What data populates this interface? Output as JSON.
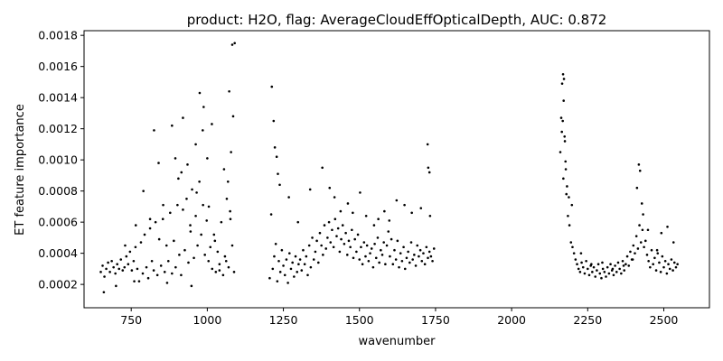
{
  "chart_data": {
    "type": "scatter",
    "title": "product: H2O, flag: AverageCloudEffOpticalDepth, AUC: 0.872",
    "xlabel": "wavenumber",
    "ylabel": "ET feature importance",
    "xlim": [
      595,
      2650
    ],
    "ylim": [
      5e-05,
      0.00183
    ],
    "xticks": [
      750,
      1000,
      1250,
      1500,
      1750,
      2000,
      2250,
      2500
    ],
    "yticks": [
      0.0002,
      0.0004,
      0.0006,
      0.0008,
      0.001,
      0.0012,
      0.0014,
      0.0016,
      0.0018
    ],
    "ytick_labels": [
      "0.0002",
      "0.0004",
      "0.0006",
      "0.0008",
      "0.0010",
      "0.0012",
      "0.0014",
      "0.0016",
      "0.0018"
    ],
    "grid": false,
    "marker_color": "#000000",
    "series": [
      {
        "x": [
          650,
          656,
          662,
          668,
          674,
          680,
          686,
          692,
          698,
          704,
          710,
          716,
          722,
          728,
          734,
          740,
          746,
          752,
          758,
          764,
          770,
          776,
          782,
          788,
          794,
          800,
          806,
          812,
          818,
          824,
          830,
          836,
          842,
          848,
          854,
          860,
          866,
          872,
          878,
          884,
          890,
          896,
          902,
          908,
          914,
          920,
          926,
          932,
          938,
          944,
          950,
          956,
          962,
          968,
          974,
          980,
          986,
          992,
          998,
          1004,
          1010,
          1016,
          1022,
          1028,
          1034,
          1040,
          1046,
          1052,
          1058,
          1064,
          1070,
          1076,
          1082,
          1088,
          660,
          700,
          760,
          790,
          812,
          840,
          868,
          884,
          905,
          920,
          935,
          948,
          962,
          975,
          988,
          1000,
          1015,
          1040,
          1062,
          1072,
          1078,
          1082,
          1085,
          1090,
          730,
          765,
          825,
          855,
          895,
          915,
          945,
          965,
          985,
          1005,
          1025,
          1055,
          1068,
          1075,
          1205,
          1210,
          1215,
          1220,
          1225,
          1230,
          1235,
          1240,
          1245,
          1250,
          1255,
          1260,
          1265,
          1270,
          1275,
          1280,
          1285,
          1290,
          1295,
          1300,
          1305,
          1310,
          1315,
          1320,
          1325,
          1330,
          1335,
          1340,
          1345,
          1350,
          1355,
          1360,
          1365,
          1370,
          1375,
          1380,
          1385,
          1390,
          1395,
          1400,
          1405,
          1410,
          1415,
          1420,
          1425,
          1430,
          1435,
          1440,
          1445,
          1450,
          1455,
          1460,
          1465,
          1470,
          1475,
          1480,
          1485,
          1490,
          1495,
          1500,
          1505,
          1510,
          1515,
          1520,
          1525,
          1530,
          1535,
          1540,
          1545,
          1550,
          1555,
          1560,
          1565,
          1570,
          1575,
          1580,
          1585,
          1590,
          1595,
          1600,
          1605,
          1610,
          1615,
          1620,
          1625,
          1630,
          1635,
          1640,
          1645,
          1650,
          1655,
          1660,
          1665,
          1670,
          1675,
          1680,
          1685,
          1690,
          1695,
          1700,
          1705,
          1710,
          1715,
          1720,
          1725,
          1730,
          1735,
          1740,
          1745,
          1212,
          1218,
          1222,
          1228,
          1232,
          1238,
          1268,
          1298,
          1338,
          1378,
          1402,
          1418,
          1438,
          1462,
          1478,
          1502,
          1522,
          1548,
          1562,
          1582,
          1598,
          1622,
          1648,
          1672,
          1702,
          1724,
          1726,
          1730,
          1732,
          2160,
          2165,
          2168,
          2170,
          2172,
          2175,
          2178,
          2180,
          2185,
          2190,
          2195,
          2200,
          2205,
          2210,
          2215,
          2220,
          2225,
          2230,
          2235,
          2240,
          2245,
          2250,
          2255,
          2260,
          2265,
          2270,
          2275,
          2280,
          2285,
          2290,
          2295,
          2300,
          2305,
          2310,
          2315,
          2320,
          2325,
          2330,
          2335,
          2340,
          2345,
          2350,
          2355,
          2360,
          2365,
          2370,
          2375,
          2380,
          2385,
          2390,
          2395,
          2400,
          2405,
          2410,
          2415,
          2420,
          2425,
          2430,
          2435,
          2440,
          2445,
          2450,
          2455,
          2460,
          2465,
          2470,
          2475,
          2480,
          2485,
          2490,
          2495,
          2500,
          2505,
          2510,
          2515,
          2520,
          2525,
          2530,
          2535,
          2540,
          2545,
          2163,
          2166,
          2169,
          2171,
          2174,
          2177,
          2182,
          2188,
          2198,
          2228,
          2262,
          2298,
          2332,
          2368,
          2398,
          2412,
          2418,
          2422,
          2428,
          2432,
          2448,
          2478,
          2492,
          2512,
          2532
        ],
        "y": [
          0.00028,
          0.00032,
          0.00025,
          0.0003,
          0.00034,
          0.00028,
          0.00035,
          0.00031,
          0.00027,
          0.00033,
          0.0003,
          0.00036,
          0.00029,
          0.00031,
          0.00038,
          0.00033,
          0.00041,
          0.00029,
          0.00035,
          0.00044,
          0.0003,
          0.00022,
          0.00047,
          0.00027,
          0.00052,
          0.00031,
          0.00024,
          0.00056,
          0.00035,
          0.00029,
          0.0006,
          0.00026,
          0.00049,
          0.00032,
          0.00062,
          0.00028,
          0.00045,
          0.00035,
          0.00066,
          0.00027,
          0.00048,
          0.00031,
          0.00071,
          0.00039,
          0.00026,
          0.00068,
          0.00042,
          0.00075,
          0.00034,
          0.00058,
          0.00081,
          0.00037,
          0.00064,
          0.00045,
          0.00086,
          0.00052,
          0.00071,
          0.00039,
          0.00061,
          0.00035,
          0.00044,
          0.0003,
          0.00052,
          0.00028,
          0.00041,
          0.00033,
          0.0006,
          0.00026,
          0.00038,
          0.00075,
          0.00031,
          0.00062,
          0.00045,
          0.00028,
          0.00015,
          0.00019,
          0.00022,
          0.0008,
          0.00062,
          0.00098,
          0.00021,
          0.00122,
          0.00088,
          0.00127,
          0.00097,
          0.00019,
          0.0011,
          0.00143,
          0.00134,
          0.00101,
          0.00123,
          0.00029,
          0.00035,
          0.00144,
          0.00105,
          0.00174,
          0.00128,
          0.00175,
          0.00045,
          0.00058,
          0.00119,
          0.00071,
          0.00101,
          0.00092,
          0.00054,
          0.00079,
          0.00119,
          0.0007,
          0.00048,
          0.00094,
          0.00086,
          0.00067,
          0.00024,
          0.00065,
          0.0003,
          0.00038,
          0.00046,
          0.00022,
          0.00035,
          0.00028,
          0.00042,
          0.00032,
          0.00026,
          0.00036,
          0.00021,
          0.0004,
          0.0003,
          0.00034,
          0.00025,
          0.00038,
          0.00028,
          0.00033,
          0.00036,
          0.00029,
          0.00042,
          0.00033,
          0.00038,
          0.00026,
          0.00045,
          0.00031,
          0.0005,
          0.00036,
          0.00041,
          0.00048,
          0.00034,
          0.00053,
          0.00045,
          0.00039,
          0.00058,
          0.00043,
          0.0005,
          0.0006,
          0.00047,
          0.00055,
          0.00044,
          0.00062,
          0.00051,
          0.00056,
          0.00041,
          0.00049,
          0.00058,
          0.00046,
          0.00053,
          0.00039,
          0.00048,
          0.00044,
          0.00055,
          0.00037,
          0.00049,
          0.00041,
          0.00052,
          0.00036,
          0.00044,
          0.00033,
          0.00047,
          0.00038,
          0.00045,
          0.00035,
          0.0004,
          0.00043,
          0.00031,
          0.00046,
          0.00037,
          0.0005,
          0.00034,
          0.00042,
          0.00039,
          0.00047,
          0.00033,
          0.00045,
          0.00054,
          0.00038,
          0.00049,
          0.00033,
          0.00042,
          0.00036,
          0.00048,
          0.00031,
          0.0004,
          0.00035,
          0.00044,
          0.0003,
          0.00037,
          0.00041,
          0.00034,
          0.00047,
          0.00036,
          0.00039,
          0.00032,
          0.00045,
          0.00038,
          0.00042,
          0.00035,
          0.0004,
          0.00033,
          0.00044,
          0.00037,
          0.00041,
          0.00038,
          0.00035,
          0.00043,
          0.00147,
          0.00125,
          0.00108,
          0.00102,
          0.00091,
          0.00084,
          0.00076,
          0.0006,
          0.00081,
          0.00095,
          0.00082,
          0.00076,
          0.00067,
          0.00072,
          0.00066,
          0.00079,
          0.00064,
          0.00058,
          0.00062,
          0.00067,
          0.00061,
          0.00074,
          0.00071,
          0.00066,
          0.00069,
          0.0011,
          0.00095,
          0.00092,
          0.00064,
          0.00105,
          0.00118,
          0.00125,
          0.00088,
          0.00152,
          0.00112,
          0.00094,
          0.00078,
          0.00064,
          0.00058,
          0.00047,
          0.00044,
          0.0004,
          0.00036,
          0.00033,
          0.0003,
          0.00028,
          0.00034,
          0.00031,
          0.00027,
          0.00035,
          0.0003,
          0.00026,
          0.00032,
          0.00028,
          0.00031,
          0.00025,
          0.00029,
          0.00033,
          0.00027,
          0.00024,
          0.0003,
          0.00028,
          0.00025,
          0.00031,
          0.00027,
          0.00033,
          0.00029,
          0.00026,
          0.00032,
          0.00028,
          0.00034,
          0.0003,
          0.00027,
          0.00035,
          0.00029,
          0.00033,
          0.00038,
          0.00032,
          0.00041,
          0.00036,
          0.00045,
          0.0004,
          0.00051,
          0.00043,
          0.00058,
          0.00047,
          0.00055,
          0.00044,
          0.00048,
          0.00039,
          0.00035,
          0.00031,
          0.00042,
          0.00033,
          0.00037,
          0.00029,
          0.0004,
          0.00034,
          0.00028,
          0.00038,
          0.00031,
          0.00035,
          0.00027,
          0.00033,
          0.0003,
          0.00036,
          0.00029,
          0.00034,
          0.00031,
          0.00033,
          0.00127,
          0.00149,
          0.00155,
          0.00138,
          0.00115,
          0.00099,
          0.00083,
          0.00076,
          0.00071,
          0.0004,
          0.00033,
          0.00034,
          0.0003,
          0.00032,
          0.00036,
          0.00082,
          0.00097,
          0.00093,
          0.00072,
          0.00065,
          0.00055,
          0.00042,
          0.00053,
          0.00057,
          0.00047
        ]
      }
    ]
  }
}
